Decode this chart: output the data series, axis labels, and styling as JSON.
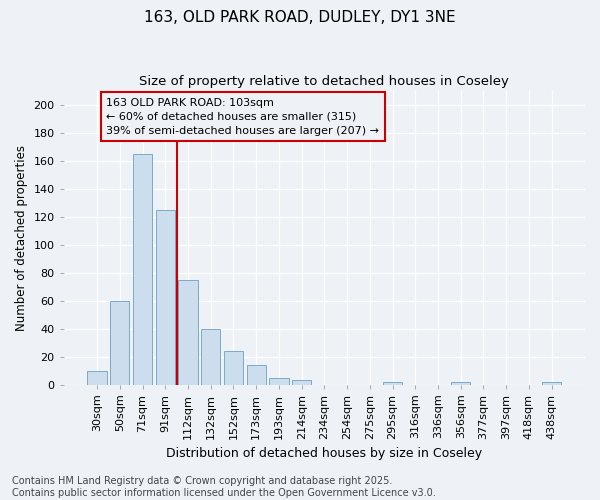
{
  "title_line1": "163, OLD PARK ROAD, DUDLEY, DY1 3NE",
  "title_line2": "Size of property relative to detached houses in Coseley",
  "xlabel": "Distribution of detached houses by size in Coseley",
  "ylabel": "Number of detached properties",
  "categories": [
    "30sqm",
    "50sqm",
    "71sqm",
    "91sqm",
    "112sqm",
    "132sqm",
    "152sqm",
    "173sqm",
    "193sqm",
    "214sqm",
    "234sqm",
    "254sqm",
    "275sqm",
    "295sqm",
    "316sqm",
    "336sqm",
    "356sqm",
    "377sqm",
    "397sqm",
    "418sqm",
    "438sqm"
  ],
  "values": [
    10,
    60,
    165,
    125,
    75,
    40,
    24,
    14,
    5,
    3,
    0,
    0,
    0,
    2,
    0,
    0,
    2,
    0,
    0,
    0,
    2
  ],
  "bar_color": "#ccdded",
  "bar_edge_color": "#7aaac8",
  "annotation_box_text": "163 OLD PARK ROAD: 103sqm\n← 60% of detached houses are smaller (315)\n39% of semi-detached houses are larger (207) →",
  "vline_color": "#cc0000",
  "vline_x": 3.5,
  "ylim": [
    0,
    210
  ],
  "yticks": [
    0,
    20,
    40,
    60,
    80,
    100,
    120,
    140,
    160,
    180,
    200
  ],
  "footnote": "Contains HM Land Registry data © Crown copyright and database right 2025.\nContains public sector information licensed under the Open Government Licence v3.0.",
  "background_color": "#eef2f6",
  "grid_color": "#ffffff",
  "title_fontsize": 11,
  "subtitle_fontsize": 9.5,
  "axis_label_fontsize": 9,
  "tick_fontsize": 8,
  "annotation_fontsize": 8,
  "footnote_fontsize": 7,
  "ylabel_fontsize": 8.5
}
